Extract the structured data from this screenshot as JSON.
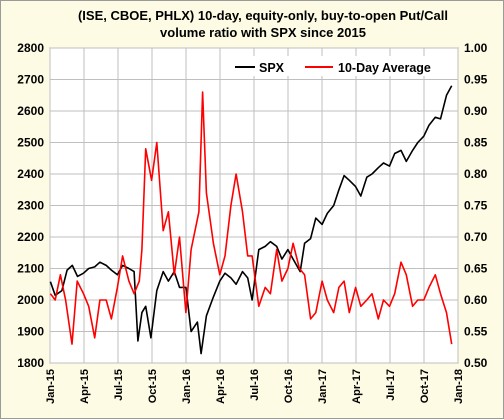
{
  "chart_data": {
    "type": "line",
    "title_line1": "(ISE, CBOE, PHLX) 10-day, equity-only, buy-to-open Put/Call",
    "title_line2": "volume ratio with SPX since 2015",
    "x_range": [
      "2015-01-01",
      "2018-01-01"
    ],
    "x_ticks": [
      "Jan-15",
      "Apr-15",
      "Jul-15",
      "Oct-15",
      "Jan-16",
      "Apr-16",
      "Jul-16",
      "Oct-16",
      "Jan-17",
      "Apr-17",
      "Jul-17",
      "Oct-17",
      "Jan-18"
    ],
    "y_left": {
      "min": 1800,
      "max": 2800,
      "ticks": [
        "1800",
        "1900",
        "2000",
        "2100",
        "2200",
        "2300",
        "2400",
        "2500",
        "2600",
        "2700",
        "2800"
      ]
    },
    "y_right": {
      "min": 0.5,
      "max": 1.0,
      "ticks": [
        "0.50",
        "0.55",
        "0.60",
        "0.65",
        "0.70",
        "0.75",
        "0.80",
        "0.85",
        "0.90",
        "0.95",
        "1.00"
      ]
    },
    "grid": true,
    "legend_position": "top-right",
    "series": [
      {
        "name": "SPX",
        "axis": "left",
        "color": "#000000",
        "x": [
          "2015-01-02",
          "2015-01-15",
          "2015-02-02",
          "2015-02-16",
          "2015-03-02",
          "2015-03-16",
          "2015-04-01",
          "2015-04-15",
          "2015-05-01",
          "2015-05-15",
          "2015-06-01",
          "2015-06-15",
          "2015-07-01",
          "2015-07-15",
          "2015-08-01",
          "2015-08-15",
          "2015-08-25",
          "2015-09-05",
          "2015-09-15",
          "2015-09-29",
          "2015-10-15",
          "2015-11-01",
          "2015-11-15",
          "2015-12-01",
          "2015-12-15",
          "2016-01-01",
          "2016-01-15",
          "2016-02-01",
          "2016-02-11",
          "2016-02-25",
          "2016-03-15",
          "2016-04-01",
          "2016-04-15",
          "2016-05-01",
          "2016-05-15",
          "2016-06-01",
          "2016-06-15",
          "2016-06-27",
          "2016-07-15",
          "2016-08-01",
          "2016-08-15",
          "2016-09-01",
          "2016-09-15",
          "2016-10-01",
          "2016-10-15",
          "2016-11-03",
          "2016-11-15",
          "2016-12-01",
          "2016-12-15",
          "2017-01-01",
          "2017-01-15",
          "2017-02-01",
          "2017-02-15",
          "2017-03-01",
          "2017-03-15",
          "2017-04-01",
          "2017-04-15",
          "2017-05-01",
          "2017-05-15",
          "2017-06-01",
          "2017-06-15",
          "2017-07-01",
          "2017-07-15",
          "2017-08-01",
          "2017-08-15",
          "2017-09-01",
          "2017-09-15",
          "2017-10-01",
          "2017-10-15",
          "2017-11-01",
          "2017-11-15",
          "2017-12-01",
          "2017-12-15"
        ],
        "values": [
          2058,
          2015,
          2030,
          2095,
          2110,
          2075,
          2085,
          2100,
          2105,
          2120,
          2110,
          2095,
          2080,
          2110,
          2100,
          2090,
          1870,
          1960,
          1980,
          1880,
          2030,
          2090,
          2060,
          2090,
          2040,
          2040,
          1900,
          1930,
          1830,
          1950,
          2010,
          2060,
          2085,
          2070,
          2050,
          2090,
          2070,
          2000,
          2160,
          2170,
          2185,
          2170,
          2130,
          2160,
          2130,
          2090,
          2180,
          2195,
          2260,
          2240,
          2275,
          2300,
          2350,
          2395,
          2380,
          2360,
          2330,
          2390,
          2400,
          2420,
          2435,
          2425,
          2465,
          2475,
          2440,
          2475,
          2500,
          2520,
          2555,
          2580,
          2575,
          2650,
          2680
        ]
      },
      {
        "name": "10-Day Average",
        "axis": "right",
        "color": "#ff0000",
        "x": [
          "2015-01-02",
          "2015-01-15",
          "2015-01-29",
          "2015-02-12",
          "2015-03-01",
          "2015-03-15",
          "2015-04-01",
          "2015-04-15",
          "2015-05-01",
          "2015-05-15",
          "2015-06-01",
          "2015-06-15",
          "2015-07-01",
          "2015-07-15",
          "2015-08-01",
          "2015-08-15",
          "2015-08-29",
          "2015-09-05",
          "2015-09-15",
          "2015-10-01",
          "2015-10-15",
          "2015-11-01",
          "2015-11-15",
          "2015-12-01",
          "2015-12-15",
          "2016-01-01",
          "2016-01-15",
          "2016-02-05",
          "2016-02-15",
          "2016-02-25",
          "2016-03-15",
          "2016-04-01",
          "2016-04-15",
          "2016-05-01",
          "2016-05-15",
          "2016-06-01",
          "2016-06-15",
          "2016-06-27",
          "2016-07-15",
          "2016-08-01",
          "2016-08-15",
          "2016-09-01",
          "2016-09-15",
          "2016-10-01",
          "2016-10-15",
          "2016-11-01",
          "2016-11-15",
          "2016-12-01",
          "2016-12-15",
          "2017-01-01",
          "2017-01-15",
          "2017-02-01",
          "2017-02-15",
          "2017-03-01",
          "2017-03-15",
          "2017-04-01",
          "2017-04-15",
          "2017-05-01",
          "2017-05-15",
          "2017-06-01",
          "2017-06-15",
          "2017-07-01",
          "2017-07-15",
          "2017-08-01",
          "2017-08-15",
          "2017-09-01",
          "2017-09-15",
          "2017-10-01",
          "2017-10-15",
          "2017-11-01",
          "2017-11-15",
          "2017-12-01",
          "2017-12-15"
        ],
        "values": [
          0.61,
          0.6,
          0.64,
          0.6,
          0.53,
          0.63,
          0.61,
          0.59,
          0.54,
          0.6,
          0.6,
          0.57,
          0.62,
          0.67,
          0.63,
          0.61,
          0.63,
          0.68,
          0.84,
          0.79,
          0.85,
          0.71,
          0.74,
          0.64,
          0.7,
          0.58,
          0.68,
          0.74,
          0.93,
          0.77,
          0.69,
          0.64,
          0.67,
          0.75,
          0.8,
          0.74,
          0.67,
          0.67,
          0.59,
          0.62,
          0.61,
          0.68,
          0.63,
          0.65,
          0.69,
          0.65,
          0.64,
          0.57,
          0.58,
          0.63,
          0.6,
          0.58,
          0.62,
          0.63,
          0.58,
          0.62,
          0.59,
          0.6,
          0.61,
          0.57,
          0.6,
          0.59,
          0.61,
          0.66,
          0.64,
          0.59,
          0.6,
          0.6,
          0.62,
          0.64,
          0.61,
          0.58,
          0.53
        ]
      }
    ]
  }
}
